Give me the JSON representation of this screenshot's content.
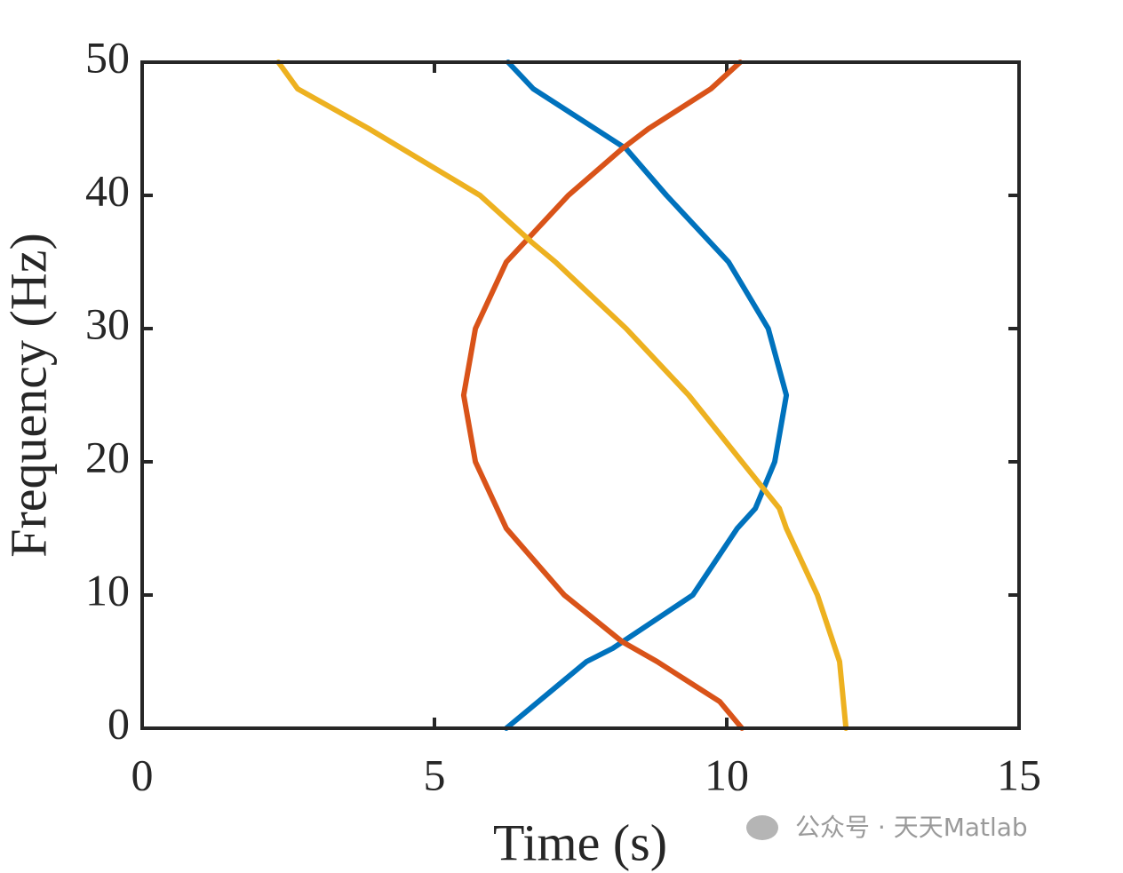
{
  "chart_data": {
    "type": "line",
    "xlabel": "Time (s)",
    "ylabel": "Frequency (Hz)",
    "xlim": [
      0,
      15
    ],
    "ylim": [
      0,
      50
    ],
    "xticks": [
      0,
      5,
      10,
      15
    ],
    "yticks": [
      0,
      10,
      20,
      30,
      40,
      50
    ],
    "grid": false,
    "series": [
      {
        "color": "#0072BD",
        "x": [
          6.23,
          7.6,
          8.05,
          9.42,
          10.18,
          10.49,
          10.82,
          11.02,
          10.71,
          10.03,
          8.97,
          8.28,
          7.75,
          6.69,
          6.26
        ],
        "values": [
          0,
          5,
          6,
          10,
          15,
          16.5,
          20,
          25,
          30,
          35,
          40,
          43.5,
          45,
          48,
          50
        ]
      },
      {
        "color": "#D95319",
        "x": [
          10.26,
          9.88,
          8.81,
          8.21,
          7.22,
          6.23,
          5.7,
          5.5,
          5.7,
          6.23,
          6.76,
          7.29,
          8.21,
          8.66,
          9.73,
          10.23
        ],
        "values": [
          0,
          2,
          5,
          6.5,
          10,
          15,
          20,
          25,
          30,
          35,
          37.5,
          40,
          43.5,
          45,
          48,
          50
        ]
      },
      {
        "color": "#EDB120",
        "x": [
          12.04,
          11.93,
          11.55,
          11.02,
          10.9,
          10.26,
          9.35,
          8.28,
          7.07,
          6.66,
          5.78,
          3.88,
          2.66,
          2.33
        ],
        "values": [
          0,
          5,
          10,
          15,
          16.5,
          20,
          25,
          30,
          35,
          36.5,
          40,
          45,
          48,
          50
        ]
      }
    ],
    "watermark": "公众号 · 天天Matlab"
  }
}
